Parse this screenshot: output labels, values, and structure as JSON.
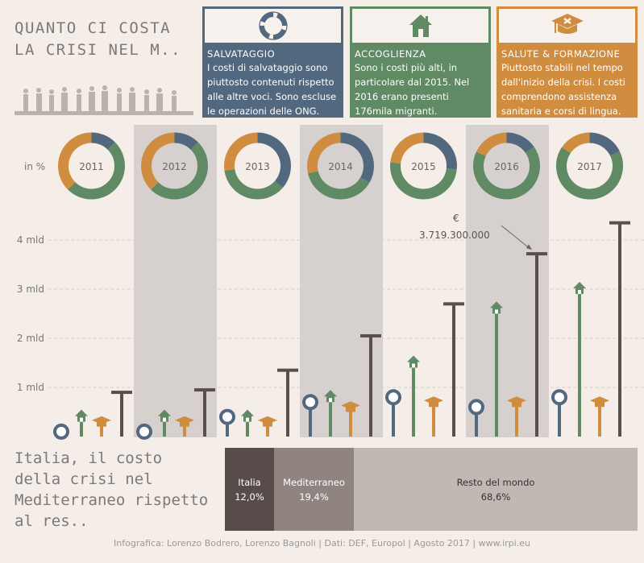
{
  "title": "QUANTO CI COSTA LA CRISI NEL M..",
  "cards": [
    {
      "id": "salvataggio",
      "title": "SALVATAGGIO",
      "icon": "lifebuoy-icon",
      "color": "#52687f",
      "text": "I costi di salvataggio sono piuttosto contenuti rispetto alle altre voci. Sono escluse le operazioni delle ONG."
    },
    {
      "id": "accoglienza",
      "title": "ACCOGLIENZA",
      "icon": "house-icon",
      "color": "#5f8a64",
      "text": "Sono i costi più alti, in particolare dal 2015. Nel 2016 erano presenti 176mila migranti."
    },
    {
      "id": "salute",
      "title": "SALUTE & FORMAZIONE",
      "icon": "graduation-cap-icon",
      "color": "#d08d3f",
      "text": "Piuttosto stabili nel tempo dall'inizio della crisi. I costi comprendono assistenza sanitaria e corsi di lingua."
    }
  ],
  "colors": {
    "salvataggio": "#52687f",
    "accoglienza": "#5f8a64",
    "salute": "#d08d3f",
    "totale": "#5a4f4b",
    "shade": "#d6d1ce"
  },
  "chart_data": {
    "type": "bar",
    "categories": [
      "2011",
      "2012",
      "2013",
      "2014",
      "2015",
      "2016",
      "2017"
    ],
    "donut_label": "in %",
    "shaded": [
      false,
      true,
      false,
      true,
      false,
      true,
      false
    ],
    "series": [
      {
        "name": "SALVATAGGIO",
        "values": [
          0.1,
          0.1,
          0.4,
          0.7,
          0.8,
          0.6,
          0.8
        ]
      },
      {
        "name": "ACCOGLIENZA",
        "values": [
          0.4,
          0.4,
          0.4,
          0.8,
          1.5,
          2.6,
          3.0
        ]
      },
      {
        "name": "SALUTE & FORMAZIONE",
        "values": [
          0.3,
          0.3,
          0.3,
          0.6,
          0.7,
          0.7,
          0.7
        ]
      }
    ],
    "totals": [
      0.9,
      0.95,
      1.35,
      2.05,
      2.7,
      3.72,
      4.35
    ],
    "ylim": [
      0,
      4.5
    ],
    "yticks": [
      {
        "v": 1,
        "label": "1 mld"
      },
      {
        "v": 2,
        "label": "2 mld"
      },
      {
        "v": 3,
        "label": "3 mld"
      },
      {
        "v": 4,
        "label": "4 mld"
      }
    ],
    "annotation": {
      "currency": "€",
      "value": "3.719.300.000",
      "category": "2016"
    }
  },
  "share": {
    "title": "Italia, il costo della crisi nel Mediterraneo rispetto al res..",
    "segments": [
      {
        "label": "Italia",
        "value": "12,0%",
        "pct": 12.0,
        "color": "#574c49",
        "text_color": "#ffffff"
      },
      {
        "label": "Mediterraneo",
        "value": "19,4%",
        "pct": 19.4,
        "color": "#8f8480",
        "text_color": "#ffffff"
      },
      {
        "label": "Resto del mondo",
        "value": "68,6%",
        "pct": 68.6,
        "color": "#c1b8b4",
        "text_color": "#333333"
      }
    ]
  },
  "footer": "Infografica: Lorenzo Bodrero, Lorenzo Bagnoli | Dati: DEF, Europol | Agosto 2017 | www.irpi.eu"
}
